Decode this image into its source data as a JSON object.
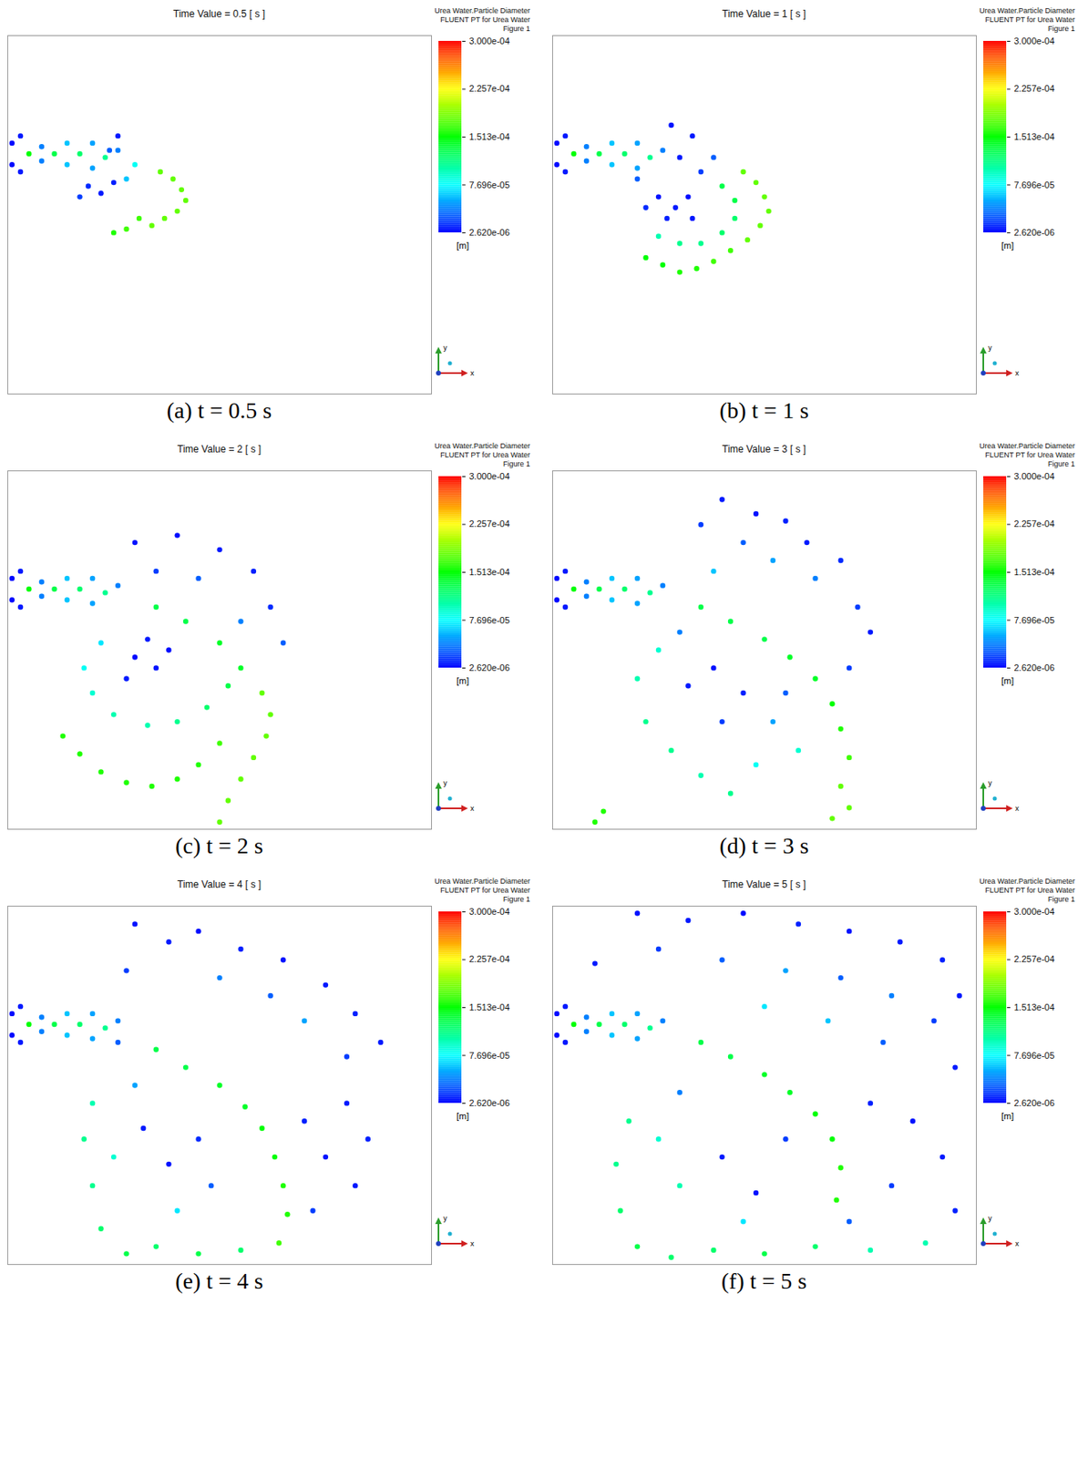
{
  "chart_data": [
    {
      "type": "scatter",
      "title": "Time Value = 0.5 [ s ]",
      "caption": "(a) t = 0.5 s",
      "xlim": [
        0,
        100
      ],
      "ylim": [
        0,
        100
      ],
      "tick_labels": false,
      "grid": false,
      "colorbar": {
        "title": [
          "Urea Water.Particle Diameter",
          "FLUENT PT for Urea Water Figure 1"
        ],
        "range": [
          2.62e-06,
          0.0003
        ],
        "ticks": [
          {
            "value": 0.0003,
            "label": "3.000e-04"
          },
          {
            "value": 0.0002257,
            "label": "2.257e-04"
          },
          {
            "value": 0.0001513,
            "label": "1.513e-04"
          },
          {
            "value": 7.696e-05,
            "label": "7.696e-05"
          },
          {
            "value": 2.62e-06,
            "label": "2.620e-06"
          }
        ],
        "unit": "[m]",
        "colors": [
          "#0000ff",
          "#00ffff",
          "#00ff00",
          "#ffff00",
          "#ff0000"
        ]
      },
      "axis_labels": [
        "y",
        "x"
      ],
      "x": [
        1,
        1,
        3,
        3,
        5,
        8,
        8,
        11,
        14,
        14,
        17,
        20,
        20,
        23,
        26,
        36,
        39,
        41,
        42,
        40,
        37,
        34,
        31,
        28,
        25,
        19,
        22,
        25,
        17,
        28,
        30,
        24,
        26
      ],
      "y": [
        70,
        64,
        72,
        62,
        67,
        69,
        65,
        67,
        70,
        64,
        67,
        70,
        63,
        66,
        68,
        62,
        60,
        57,
        54,
        51,
        49,
        47,
        49,
        46,
        45,
        58,
        56,
        59,
        55,
        60,
        64,
        68,
        72
      ],
      "values": [
        5e-06,
        5e-06,
        1e-05,
        1e-05,
        0.00015,
        4e-05,
        4e-05,
        0.00013,
        6e-05,
        6e-05,
        0.00012,
        5e-05,
        5e-05,
        0.00011,
        4e-05,
        0.00018,
        0.00018,
        0.00018,
        0.00018,
        0.00018,
        0.00018,
        0.00018,
        0.00017,
        0.00017,
        0.00016,
        1.5e-05,
        1e-05,
        1.2e-05,
        2e-05,
        6e-05,
        8e-05,
        3e-05,
        1e-05
      ]
    },
    {
      "type": "scatter",
      "title": "Time Value = 1 [ s ]",
      "caption": "(b) t = 1 s",
      "xlim": [
        0,
        100
      ],
      "ylim": [
        0,
        100
      ],
      "tick_labels": false,
      "grid": false,
      "colorbar": {
        "title": [
          "Urea Water.Particle Diameter",
          "FLUENT PT for Urea Water Figure 1"
        ],
        "range": [
          2.62e-06,
          0.0003
        ],
        "ticks": [
          {
            "value": 0.0003,
            "label": "3.000e-04"
          },
          {
            "value": 0.0002257,
            "label": "2.257e-04"
          },
          {
            "value": 0.0001513,
            "label": "1.513e-04"
          },
          {
            "value": 7.696e-05,
            "label": "7.696e-05"
          },
          {
            "value": 2.62e-06,
            "label": "2.620e-06"
          }
        ],
        "unit": "[m]",
        "colors": [
          "#0000ff",
          "#00ffff",
          "#00ff00",
          "#ffff00",
          "#ff0000"
        ]
      },
      "axis_labels": [
        "y",
        "x"
      ],
      "x": [
        1,
        1,
        3,
        3,
        5,
        8,
        8,
        11,
        14,
        14,
        17,
        20,
        20,
        23,
        26,
        45,
        48,
        50,
        51,
        49,
        46,
        42,
        38,
        34,
        30,
        26,
        22,
        40,
        43,
        43,
        40,
        35,
        30,
        25,
        25,
        29,
        32,
        27,
        33,
        22,
        35,
        30,
        28,
        33,
        38,
        20
      ],
      "y": [
        70,
        64,
        72,
        62,
        67,
        69,
        65,
        67,
        70,
        64,
        67,
        70,
        63,
        66,
        68,
        62,
        59,
        55,
        51,
        47,
        43,
        40,
        37,
        35,
        34,
        36,
        38,
        58,
        54,
        49,
        45,
        42,
        42,
        44,
        55,
        52,
        55,
        49,
        49,
        52,
        62,
        66,
        75,
        72,
        66,
        60
      ],
      "values": [
        5e-06,
        5e-06,
        1e-05,
        1e-05,
        0.00015,
        4e-05,
        4e-05,
        0.00013,
        6e-05,
        6e-05,
        0.00012,
        5e-05,
        5e-05,
        0.00011,
        4e-05,
        0.00018,
        0.00018,
        0.00018,
        0.00018,
        0.00018,
        0.00018,
        0.00017,
        0.00017,
        0.00016,
        0.00016,
        0.00015,
        0.00015,
        0.00013,
        0.00013,
        0.00012,
        0.00012,
        0.00011,
        0.00011,
        0.0001,
        8e-06,
        1e-05,
        6e-06,
        1.2e-05,
        9e-06,
        1.5e-05,
        2e-05,
        1e-05,
        8e-06,
        1e-05,
        3e-05,
        3e-05
      ]
    },
    {
      "type": "scatter",
      "title": "Time Value = 2 [ s ]",
      "caption": "(c) t = 2 s",
      "xlim": [
        0,
        100
      ],
      "ylim": [
        0,
        100
      ],
      "tick_labels": false,
      "grid": false,
      "colorbar": {
        "title": [
          "Urea Water.Particle Diameter",
          "FLUENT PT for Urea Water Figure 1"
        ],
        "range": [
          2.62e-06,
          0.0003
        ],
        "ticks": [
          {
            "value": 0.0003,
            "label": "3.000e-04"
          },
          {
            "value": 0.0002257,
            "label": "2.257e-04"
          },
          {
            "value": 0.0001513,
            "label": "1.513e-04"
          },
          {
            "value": 7.696e-05,
            "label": "7.696e-05"
          },
          {
            "value": 2.62e-06,
            "label": "2.620e-06"
          }
        ],
        "unit": "[m]",
        "colors": [
          "#0000ff",
          "#00ffff",
          "#00ff00",
          "#ffff00",
          "#ff0000"
        ]
      },
      "axis_labels": [
        "y",
        "x"
      ],
      "x": [
        1,
        1,
        3,
        3,
        5,
        8,
        8,
        11,
        14,
        14,
        17,
        20,
        20,
        23,
        26,
        60,
        62,
        61,
        58,
        55,
        52,
        50,
        13,
        17,
        22,
        28,
        34,
        40,
        45,
        50,
        55,
        52,
        47,
        40,
        33,
        25,
        20,
        18,
        22,
        30,
        35,
        28,
        38,
        33,
        30,
        40,
        50,
        58,
        62,
        45,
        35,
        55,
        65,
        35,
        42,
        50
      ],
      "y": [
        70,
        64,
        72,
        62,
        67,
        69,
        65,
        67,
        70,
        64,
        67,
        70,
        63,
        66,
        68,
        38,
        32,
        26,
        20,
        14,
        8,
        2,
        26,
        21,
        16,
        13,
        12,
        14,
        18,
        24,
        45,
        40,
        34,
        30,
        29,
        32,
        38,
        45,
        52,
        48,
        45,
        42,
        50,
        53,
        80,
        82,
        78,
        72,
        62,
        70,
        72,
        58,
        52,
        62,
        58,
        52
      ],
      "values": [
        5e-06,
        5e-06,
        1e-05,
        1e-05,
        0.00015,
        4e-05,
        4e-05,
        0.00013,
        6e-05,
        6e-05,
        0.00012,
        5e-05,
        5e-05,
        0.00011,
        4e-05,
        0.00018,
        0.00018,
        0.00018,
        0.00018,
        0.00018,
        0.00018,
        0.00018,
        0.00016,
        0.00016,
        0.00016,
        0.00016,
        0.00016,
        0.00016,
        0.00016,
        0.00017,
        0.00014,
        0.00013,
        0.00012,
        0.00011,
        0.0001,
        0.0001,
        9e-05,
        8e-05,
        7e-05,
        5e-06,
        8e-06,
        1e-05,
        6e-06,
        1e-05,
        8e-06,
        6e-06,
        1e-05,
        1.2e-05,
        1.5e-05,
        3e-05,
        2e-05,
        4e-05,
        3e-05,
        0.00013,
        0.00013,
        0.00014
      ]
    },
    {
      "type": "scatter",
      "title": "Time Value = 3 [ s ]",
      "caption": "(d) t = 3 s",
      "xlim": [
        0,
        100
      ],
      "ylim": [
        0,
        100
      ],
      "tick_labels": false,
      "grid": false,
      "colorbar": {
        "title": [
          "Urea Water.Particle Diameter",
          "FLUENT PT for Urea Water Figure 1"
        ],
        "range": [
          2.62e-06,
          0.0003
        ],
        "ticks": [
          {
            "value": 0.0003,
            "label": "3.000e-04"
          },
          {
            "value": 0.0002257,
            "label": "2.257e-04"
          },
          {
            "value": 0.0001513,
            "label": "1.513e-04"
          },
          {
            "value": 7.696e-05,
            "label": "7.696e-05"
          },
          {
            "value": 2.62e-06,
            "label": "2.620e-06"
          }
        ],
        "unit": "[m]",
        "colors": [
          "#0000ff",
          "#00ffff",
          "#00ff00",
          "#ffff00",
          "#ff0000"
        ]
      },
      "axis_labels": [
        "y",
        "x"
      ],
      "x": [
        1,
        1,
        3,
        3,
        5,
        8,
        8,
        11,
        14,
        14,
        17,
        20,
        20,
        23,
        26,
        40,
        48,
        55,
        35,
        60,
        68,
        45,
        52,
        62,
        72,
        75,
        38,
        35,
        42,
        50,
        56,
        62,
        66,
        68,
        70,
        68,
        70,
        66,
        25,
        20,
        22,
        28,
        35,
        42,
        48,
        32,
        38,
        45,
        40,
        52,
        58,
        55,
        70,
        30,
        12,
        10
      ],
      "y": [
        70,
        64,
        72,
        62,
        67,
        69,
        65,
        67,
        70,
        64,
        67,
        70,
        63,
        66,
        68,
        92,
        88,
        86,
        85,
        80,
        75,
        80,
        75,
        70,
        62,
        55,
        72,
        62,
        58,
        53,
        48,
        42,
        35,
        28,
        20,
        12,
        6,
        3,
        50,
        42,
        30,
        22,
        15,
        10,
        18,
        40,
        45,
        38,
        30,
        30,
        22,
        38,
        45,
        55,
        5,
        2
      ],
      "values": [
        5e-06,
        5e-06,
        1e-05,
        1e-05,
        0.00015,
        4e-05,
        4e-05,
        0.00013,
        6e-05,
        6e-05,
        0.00012,
        5e-05,
        5e-05,
        0.00011,
        4e-05,
        1e-05,
        8e-06,
        1.2e-05,
        2e-05,
        1e-05,
        1.5e-05,
        3e-05,
        5e-05,
        4e-05,
        2e-05,
        1e-05,
        6e-05,
        0.00013,
        0.00013,
        0.00013,
        0.00014,
        0.00014,
        0.00015,
        0.00016,
        0.00017,
        0.00018,
        0.00018,
        0.00018,
        9e-05,
        0.0001,
        0.00011,
        0.00011,
        0.0001,
        0.00011,
        8e-05,
        1e-05,
        7e-06,
        1.2e-05,
        2e-05,
        5e-05,
        9e-05,
        3e-05,
        2e-05,
        4e-05,
        0.00016,
        0.00016
      ]
    },
    {
      "type": "scatter",
      "title": "Time Value = 4 [ s ]",
      "caption": "(e) t = 4 s",
      "xlim": [
        0,
        100
      ],
      "ylim": [
        0,
        100
      ],
      "tick_labels": false,
      "grid": false,
      "colorbar": {
        "title": [
          "Urea Water.Particle Diameter",
          "FLUENT PT for Urea Water Figure 1"
        ],
        "range": [
          2.62e-06,
          0.0003
        ],
        "ticks": [
          {
            "value": 0.0003,
            "label": "3.000e-04"
          },
          {
            "value": 0.0002257,
            "label": "2.257e-04"
          },
          {
            "value": 0.0001513,
            "label": "1.513e-04"
          },
          {
            "value": 7.696e-05,
            "label": "7.696e-05"
          },
          {
            "value": 2.62e-06,
            "label": "2.620e-06"
          }
        ],
        "unit": "[m]",
        "colors": [
          "#0000ff",
          "#00ffff",
          "#00ff00",
          "#ffff00",
          "#ff0000"
        ]
      },
      "axis_labels": [
        "y",
        "x"
      ],
      "x": [
        1,
        1,
        3,
        3,
        5,
        8,
        8,
        11,
        14,
        14,
        17,
        20,
        20,
        23,
        26,
        30,
        38,
        45,
        55,
        65,
        75,
        82,
        88,
        28,
        50,
        62,
        70,
        80,
        35,
        42,
        50,
        56,
        60,
        63,
        65,
        66,
        64,
        20,
        18,
        20,
        22,
        28,
        35,
        45,
        55,
        25,
        32,
        38,
        45,
        48,
        40,
        70,
        75,
        80,
        72,
        82,
        85,
        30,
        26
      ],
      "y": [
        70,
        64,
        72,
        62,
        67,
        69,
        65,
        67,
        70,
        64,
        67,
        70,
        63,
        66,
        68,
        95,
        90,
        93,
        88,
        85,
        78,
        70,
        62,
        82,
        80,
        75,
        68,
        58,
        60,
        55,
        50,
        44,
        38,
        30,
        22,
        14,
        6,
        45,
        35,
        22,
        10,
        3,
        5,
        3,
        4,
        30,
        38,
        28,
        35,
        22,
        15,
        40,
        30,
        45,
        15,
        22,
        35,
        50,
        62
      ],
      "values": [
        5e-06,
        5e-06,
        1e-05,
        1e-05,
        0.00015,
        4e-05,
        4e-05,
        0.00013,
        6e-05,
        6e-05,
        0.00012,
        5e-05,
        5e-05,
        0.00011,
        4e-05,
        8e-06,
        1e-05,
        6e-06,
        1.2e-05,
        8e-06,
        1e-05,
        1.2e-05,
        1e-05,
        2e-05,
        4e-05,
        3e-05,
        5e-05,
        2e-05,
        0.00013,
        0.00013,
        0.00014,
        0.00014,
        0.00015,
        0.00015,
        0.00016,
        0.00016,
        0.00017,
        0.0001,
        0.00011,
        0.00011,
        0.00012,
        0.00013,
        0.00012,
        0.00013,
        0.00012,
        9e-05,
        1e-05,
        8e-06,
        1.5e-05,
        3e-05,
        7e-05,
        1.2e-05,
        8e-06,
        1e-05,
        2e-05,
        1e-05,
        1.2e-05,
        5e-05,
        3e-05
      ]
    },
    {
      "type": "scatter",
      "title": "Time Value = 5 [ s ]",
      "caption": "(f) t = 5 s",
      "xlim": [
        0,
        100
      ],
      "ylim": [
        0,
        100
      ],
      "tick_labels": false,
      "grid": false,
      "colorbar": {
        "title": [
          "Urea Water.Particle Diameter",
          "FLUENT PT for Urea Water Figure 1"
        ],
        "range": [
          2.62e-06,
          0.0003
        ],
        "ticks": [
          {
            "value": 0.0003,
            "label": "3.000e-04"
          },
          {
            "value": 0.0002257,
            "label": "2.257e-04"
          },
          {
            "value": 0.0001513,
            "label": "1.513e-04"
          },
          {
            "value": 7.696e-05,
            "label": "7.696e-05"
          },
          {
            "value": 2.62e-06,
            "label": "2.620e-06"
          }
        ],
        "unit": "[m]",
        "colors": [
          "#0000ff",
          "#00ffff",
          "#00ff00",
          "#ffff00",
          "#ff0000"
        ]
      },
      "axis_labels": [
        "y",
        "x"
      ],
      "x": [
        1,
        1,
        3,
        3,
        5,
        8,
        8,
        11,
        14,
        14,
        17,
        20,
        20,
        23,
        26,
        20,
        32,
        45,
        58,
        70,
        82,
        92,
        96,
        25,
        40,
        55,
        68,
        80,
        90,
        10,
        50,
        65,
        78,
        95,
        35,
        42,
        50,
        56,
        62,
        66,
        68,
        67,
        18,
        15,
        16,
        20,
        28,
        38,
        50,
        62,
        75,
        88,
        25,
        30,
        40,
        48,
        55,
        75,
        85,
        92,
        80,
        95,
        70,
        45,
        30
      ],
      "y": [
        70,
        64,
        72,
        62,
        67,
        69,
        65,
        67,
        70,
        64,
        67,
        70,
        63,
        66,
        68,
        98,
        96,
        98,
        95,
        93,
        90,
        85,
        75,
        88,
        85,
        82,
        80,
        75,
        68,
        84,
        72,
        68,
        62,
        55,
        62,
        58,
        53,
        48,
        42,
        35,
        27,
        18,
        40,
        28,
        15,
        5,
        2,
        4,
        3,
        5,
        4,
        6,
        35,
        22,
        30,
        20,
        35,
        45,
        40,
        30,
        22,
        15,
        12,
        12,
        48
      ],
      "values": [
        5e-06,
        5e-06,
        1e-05,
        1e-05,
        0.00015,
        4e-05,
        4e-05,
        0.00013,
        6e-05,
        6e-05,
        0.00012,
        5e-05,
        5e-05,
        0.00011,
        4e-05,
        8e-06,
        1e-05,
        6e-06,
        1.2e-05,
        8e-06,
        1e-05,
        1.2e-05,
        1e-05,
        2e-05,
        3e-05,
        5e-05,
        3e-05,
        4e-05,
        2e-05,
        1e-05,
        7e-05,
        6e-05,
        3e-05,
        1e-05,
        0.00013,
        0.00013,
        0.00014,
        0.00014,
        0.00015,
        0.00015,
        0.00016,
        0.00016,
        0.00011,
        0.00011,
        0.00012,
        0.00013,
        0.00012,
        0.00012,
        0.00013,
        0.00012,
        0.0001,
        0.0001,
        9e-05,
        0.0001,
        1e-05,
        8e-06,
        2e-05,
        1.2e-05,
        8e-06,
        1e-05,
        2e-05,
        1.2e-05,
        3e-05,
        7e-05,
        4e-05
      ]
    }
  ]
}
